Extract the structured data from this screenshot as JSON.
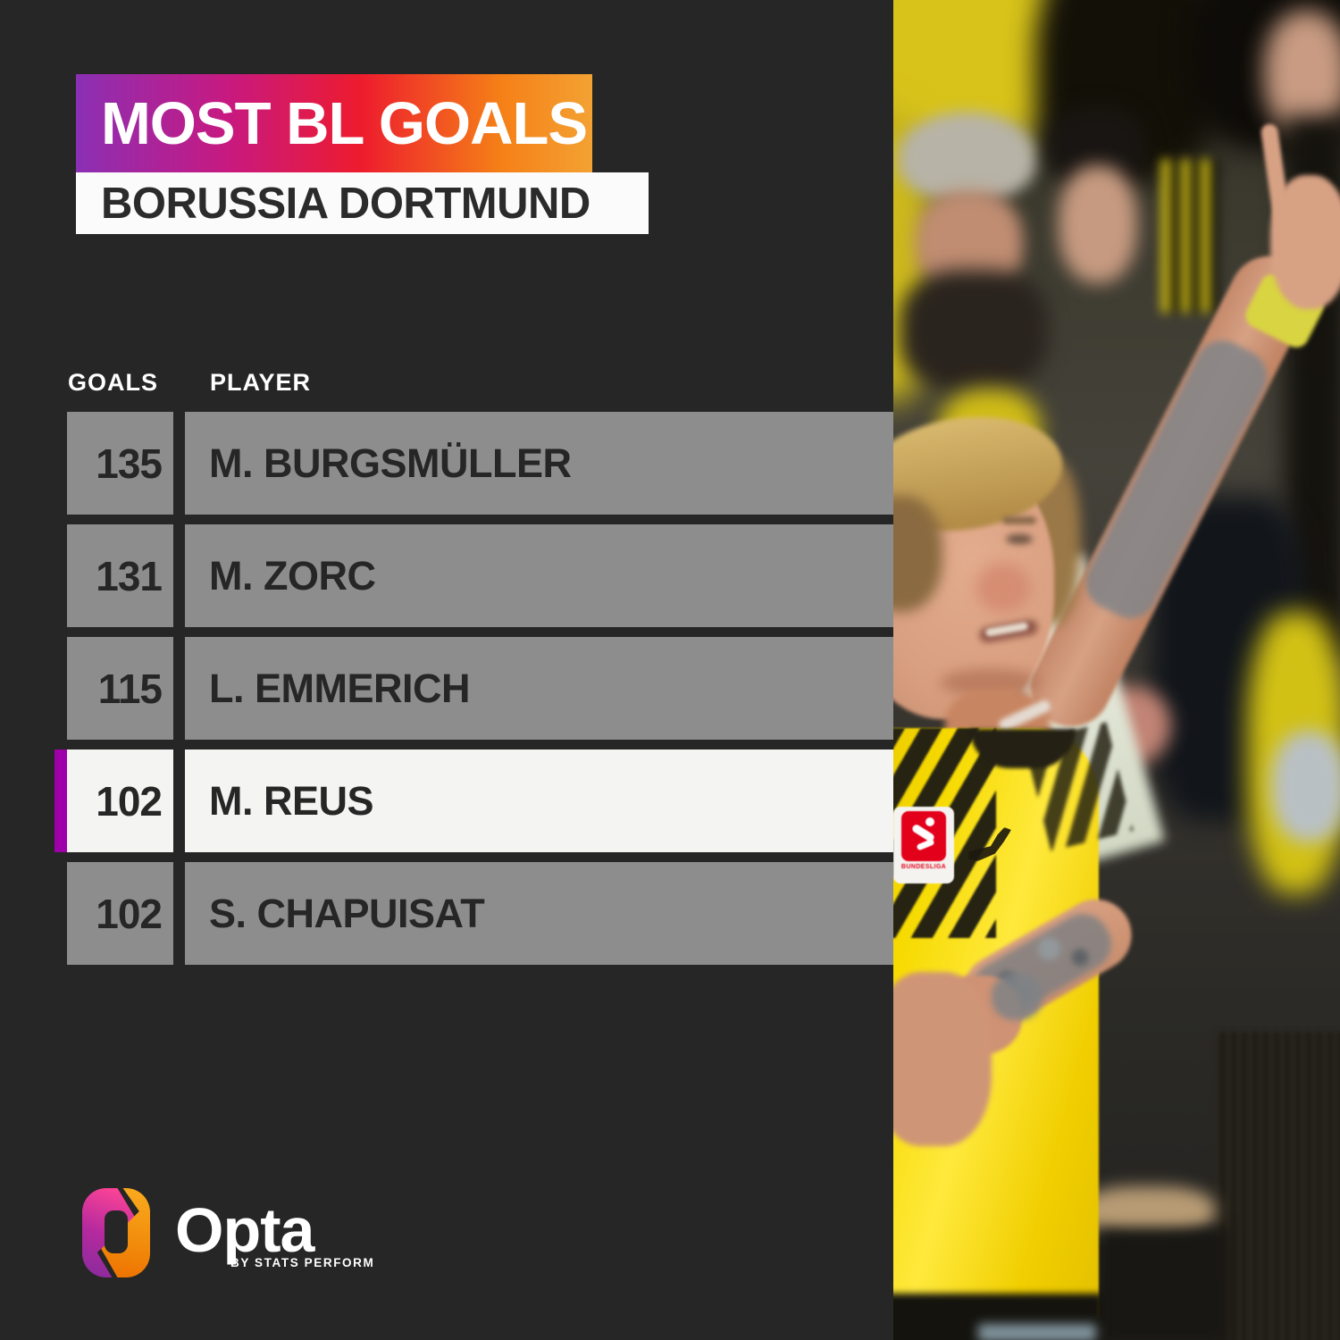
{
  "title": {
    "line1": "MOST BL GOALS",
    "subtitle": "BORUSSIA DORTMUND"
  },
  "table": {
    "headers": {
      "goals": "GOALS",
      "player": "PLAYER"
    },
    "rows": [
      {
        "goals": "135",
        "player": "M. BURGSMÜLLER",
        "highlighted": false
      },
      {
        "goals": "131",
        "player": "M. ZORC",
        "highlighted": false
      },
      {
        "goals": "115",
        "player": "L. EMMERICH",
        "highlighted": false
      },
      {
        "goals": "102",
        "player": "M. REUS",
        "highlighted": true
      },
      {
        "goals": "102",
        "player": "S. CHAPUISAT",
        "highlighted": false
      }
    ]
  },
  "footer": {
    "brand": "Opta",
    "tagline": "BY STATS PERFORM"
  },
  "photo": {
    "patch_label": "BUNDESLIGA"
  },
  "colors": {
    "panel_bg": "#262626",
    "row_gray": "#8d8d8d",
    "row_highlight": "#f4f4f3",
    "accent_purple": "#9d00a8",
    "banner_gradient": [
      "#8b2fb4",
      "#c9197f",
      "#ed1b2e",
      "#f57f17",
      "#f3a233"
    ],
    "subtitle_bg": "#fbfbfb",
    "jersey_yellow": "#f4d701",
    "bundesliga_red": "#e2001a"
  },
  "chart_data": {
    "type": "table",
    "title": "MOST BL GOALS",
    "subtitle": "BORUSSIA DORTMUND",
    "columns": [
      "GOALS",
      "PLAYER"
    ],
    "rows": [
      [
        135,
        "M. BURGSMÜLLER"
      ],
      [
        131,
        "M. ZORC"
      ],
      [
        115,
        "L. EMMERICH"
      ],
      [
        102,
        "M. REUS"
      ],
      [
        102,
        "S. CHAPUISAT"
      ]
    ],
    "highlighted_row": "M. REUS",
    "legend_position": "none",
    "grid": false
  }
}
